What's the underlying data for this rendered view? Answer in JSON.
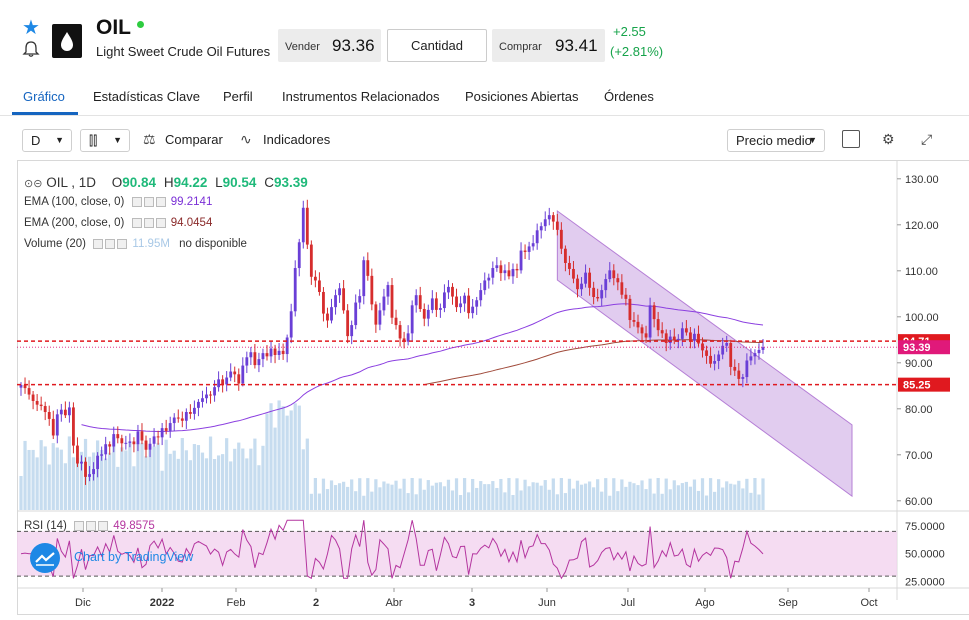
{
  "header": {
    "symbol": "OIL",
    "name": "Light Sweet Crude Oil Futures",
    "sell_label": "Vender",
    "sell_price": "93.36",
    "qty_label": "Cantidad",
    "buy_label": "Comprar",
    "buy_price": "93.41",
    "change_abs": "+2.55",
    "change_pct": "(+2.81%)"
  },
  "tabs": [
    "Gráfico",
    "Estadísticas Clave",
    "Perfil",
    "Instrumentos Relacionados",
    "Posiciones Abiertas",
    "Órdenes"
  ],
  "toolbar": {
    "interval": "D",
    "compare_label": "Comparar",
    "indicators_label": "Indicadores",
    "price_mode": "Precio medio"
  },
  "legend": {
    "title": "OIL , 1D",
    "o_label": "O",
    "o_value": "90.84",
    "h_label": "H",
    "h_value": "94.22",
    "l_label": "L",
    "l_value": "90.54",
    "c_label": "C",
    "c_value": "93.39",
    "ema100_label": "EMA (100, close, 0)",
    "ema100_value": "99.2141",
    "ema200_label": "EMA (200, close, 0)",
    "ema200_value": "94.0454",
    "volume_label": "Volume (20)",
    "volume_value": "11.95M",
    "volume_note": "no disponible",
    "rsi_label": "RSI (14)",
    "rsi_value": "49.8575"
  },
  "tradingview": "Chart by TradingView",
  "colors": {
    "up": "#6a3fd6",
    "down": "#d62d2d",
    "ema100": "#8b3fe0",
    "ema200": "#a04a3a",
    "channel": "#b57fd6",
    "volume": "#c6dcef",
    "rsi": "#b4359f",
    "hline": "#e0191f",
    "price_tag": "#e0197a"
  },
  "chart_data": {
    "type": "candlestick",
    "y_ticks": [
      "130.00",
      "120.00",
      "110.00",
      "100.00",
      "90.00",
      "80.00",
      "70.00",
      "60.00"
    ],
    "ylim": [
      58,
      133
    ],
    "x_ticks": [
      "Dic",
      "2022",
      "Feb",
      "2",
      "Abr",
      "3",
      "Jun",
      "Jul",
      "Ago",
      "Sep",
      "Oct"
    ],
    "price_tags": [
      {
        "value": 94.71,
        "label": "94.71"
      },
      {
        "value": 93.39,
        "label": "93.39"
      },
      {
        "value": 85.25,
        "label": "85.25"
      }
    ],
    "rsi_ticks": [
      "75.0000",
      "50.0000",
      "25.0000"
    ],
    "rsi_ylim": [
      22,
      82
    ],
    "closes": [
      85.2,
      84.5,
      83.1,
      81.7,
      80.9,
      80.6,
      79.3,
      77.8,
      74.2,
      78.8,
      79.8,
      78.6,
      80.3,
      72.0,
      68.1,
      68.5,
      65.2,
      65.8,
      66.9,
      69.8,
      70.1,
      72.3,
      71.8,
      74.5,
      73.6,
      72.5,
      72.6,
      72.9,
      72.3,
      75.1,
      73.1,
      71.1,
      72.4,
      74.0,
      73.8,
      75.8,
      75.2,
      76.9,
      78.1,
      77.9,
      77.4,
      79.3,
      78.9,
      80.2,
      81.5,
      82.3,
      83.1,
      82.9,
      84.7,
      86.4,
      85.3,
      86.8,
      88.1,
      87.5,
      85.5,
      89.4,
      91.2,
      92.3,
      89.5,
      90.8,
      92.1,
      91.4,
      93.1,
      91.7,
      92.6,
      91.9,
      95.5,
      101.2,
      110.6,
      116.2,
      123.7,
      115.7,
      108.7,
      107.9,
      105.4,
      100.7,
      99.2,
      102.1,
      104.7,
      106.2,
      101.4,
      95.8,
      98.2,
      103.1,
      104.5,
      112.3,
      108.9,
      102.7,
      98.3,
      101.4,
      104.4,
      106.9,
      99.8,
      98.2,
      95.3,
      94.6,
      96.4,
      102.5,
      104.7,
      101.7,
      99.6,
      101.5,
      104.0,
      101.5,
      101.9,
      105.3,
      106.5,
      104.4,
      102.1,
      102.9,
      104.6,
      100.8,
      102.2,
      103.6,
      105.8,
      107.9,
      108.5,
      110.6,
      111.2,
      109.5,
      110.1,
      108.8,
      110.4,
      110.1,
      114.4,
      114.1,
      115.3,
      116.0,
      118.8,
      119.7,
      121.2,
      122.1,
      120.7,
      118.9,
      114.8,
      111.7,
      110.4,
      108.3,
      106.0,
      107.2,
      109.6,
      106.3,
      104.3,
      104.0,
      105.8,
      108.2,
      110.1,
      108.4,
      107.5,
      104.8,
      103.9,
      99.3,
      98.9,
      97.7,
      96.4,
      95.5,
      102.5,
      99.5,
      97.1,
      96.4,
      94.3,
      95.7,
      94.9,
      95.2,
      97.5,
      96.6,
      94.8,
      96.3,
      94.2,
      92.7,
      91.5,
      89.8,
      90.4,
      91.8,
      93.7,
      94.3,
      89.1,
      88.3,
      86.5,
      86.9,
      90.5,
      91.4,
      92.1,
      92.8,
      93.4
    ]
  }
}
